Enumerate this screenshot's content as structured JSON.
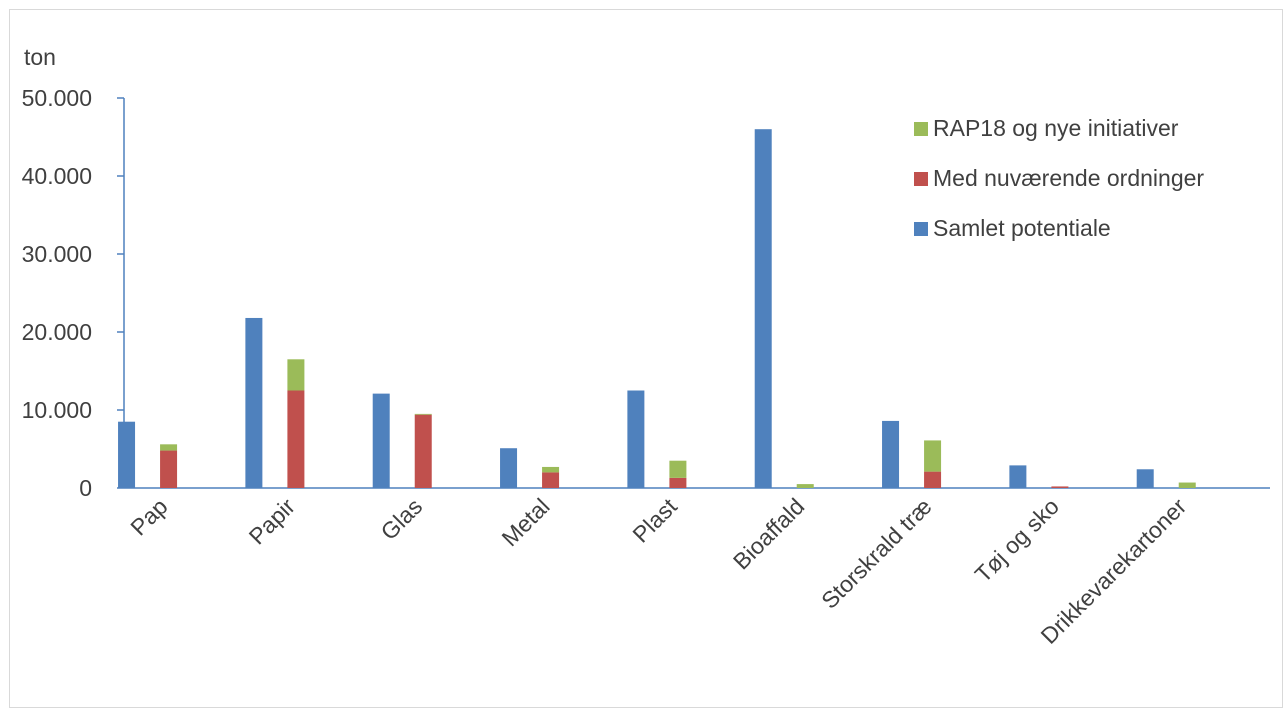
{
  "chart_data": {
    "type": "bar",
    "ylabel": "ton",
    "ylim": [
      0,
      50000
    ],
    "yticks": [
      0,
      10000,
      20000,
      30000,
      40000,
      50000
    ],
    "ytick_labels": [
      "0",
      "10.000",
      "20.000",
      "30.000",
      "40.000",
      "50.000"
    ],
    "categories": [
      "Pap",
      "Papir",
      "Glas",
      "Metal",
      "Plast",
      "Bioaffald",
      "Storskrald træ",
      "Tøj og sko",
      "Drikkevarekartoner"
    ],
    "series": [
      {
        "name": "Samlet potentiale",
        "color": "#4f81bd",
        "stack": "a",
        "values": [
          8500,
          21800,
          12100,
          5100,
          12500,
          46000,
          8600,
          2900,
          2400
        ]
      },
      {
        "name": "Med nuværende ordninger",
        "color": "#c0504d",
        "stack": "b",
        "values": [
          4800,
          12500,
          9400,
          2000,
          1300,
          0,
          2100,
          200,
          0
        ]
      },
      {
        "name": "RAP18 og nye initiativer",
        "color": "#9bbb59",
        "stack": "b",
        "values": [
          800,
          4000,
          100,
          700,
          2200,
          500,
          4000,
          0,
          700
        ]
      }
    ],
    "legend": {
      "placement": "top-right",
      "order": [
        "RAP18 og nye initiativer",
        "Med nuværende ordninger",
        "Samlet potentiale"
      ]
    },
    "grid": false
  }
}
